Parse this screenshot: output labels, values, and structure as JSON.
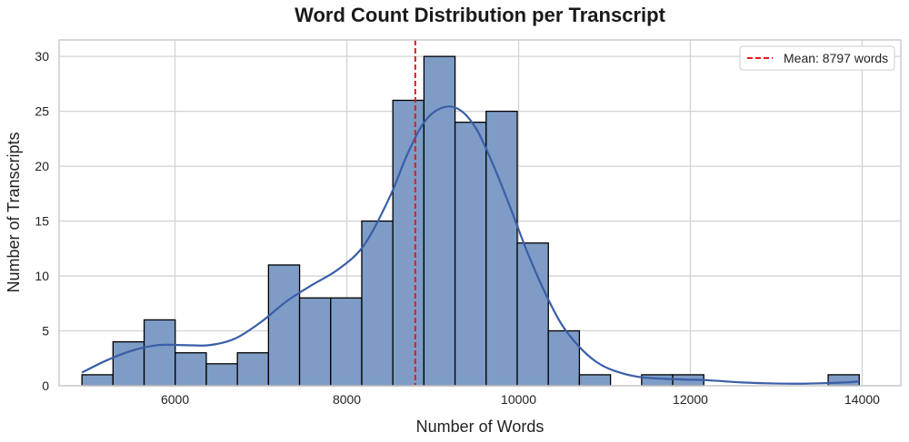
{
  "chart_data": {
    "type": "bar",
    "title": "Word Count Distribution per Transcript",
    "xlabel": "Number of Words",
    "ylabel": "Number of Transcripts",
    "xlim": [
      4650,
      14450
    ],
    "ylim": [
      0,
      31.5
    ],
    "xticks": [
      6000,
      8000,
      10000,
      12000,
      14000
    ],
    "yticks": [
      0,
      5,
      10,
      15,
      20,
      25,
      30
    ],
    "grid": true,
    "legend_position": "top-right",
    "bin_edges": [
      4916,
      5278,
      5640,
      6002,
      6364,
      6726,
      7088,
      7450,
      7812,
      8174,
      8536,
      8898,
      9260,
      9622,
      9984,
      10346,
      10708,
      11070,
      11432,
      11794,
      12156,
      12518,
      12880,
      13242,
      13604,
      13966
    ],
    "counts": [
      1,
      4,
      6,
      3,
      2,
      3,
      11,
      8,
      8,
      15,
      26,
      30,
      24,
      25,
      13,
      5,
      1,
      0,
      1,
      1,
      0,
      0,
      0,
      0,
      1
    ],
    "kde": {
      "x": [
        4916,
        5200,
        5500,
        5800,
        6100,
        6400,
        6700,
        7000,
        7300,
        7600,
        7900,
        8200,
        8500,
        8700,
        8900,
        9100,
        9300,
        9500,
        9700,
        9900,
        10100,
        10300,
        10500,
        10700,
        10900,
        11100,
        11400,
        11800,
        12200,
        12600,
        13000,
        13400,
        13800,
        13966
      ],
      "y": [
        1.2,
        2.3,
        3.2,
        3.7,
        3.7,
        3.7,
        4.3,
        5.8,
        7.7,
        9.2,
        10.6,
        12.8,
        17.2,
        21.0,
        24.0,
        25.3,
        25.2,
        23.5,
        20.2,
        16.3,
        12.2,
        8.6,
        5.6,
        3.6,
        2.2,
        1.4,
        0.8,
        0.6,
        0.5,
        0.3,
        0.2,
        0.2,
        0.3,
        0.4
      ]
    },
    "mean_line": {
      "x": 8797,
      "label": "Mean: 8797 words"
    },
    "colors": {
      "bar_fill": "#7e9cc6",
      "bar_edge": "#000000",
      "kde_line": "#3a5ea7",
      "mean_line": "#e31a1c",
      "grid": "#d3d3d3",
      "spine": "#cccccc"
    }
  }
}
